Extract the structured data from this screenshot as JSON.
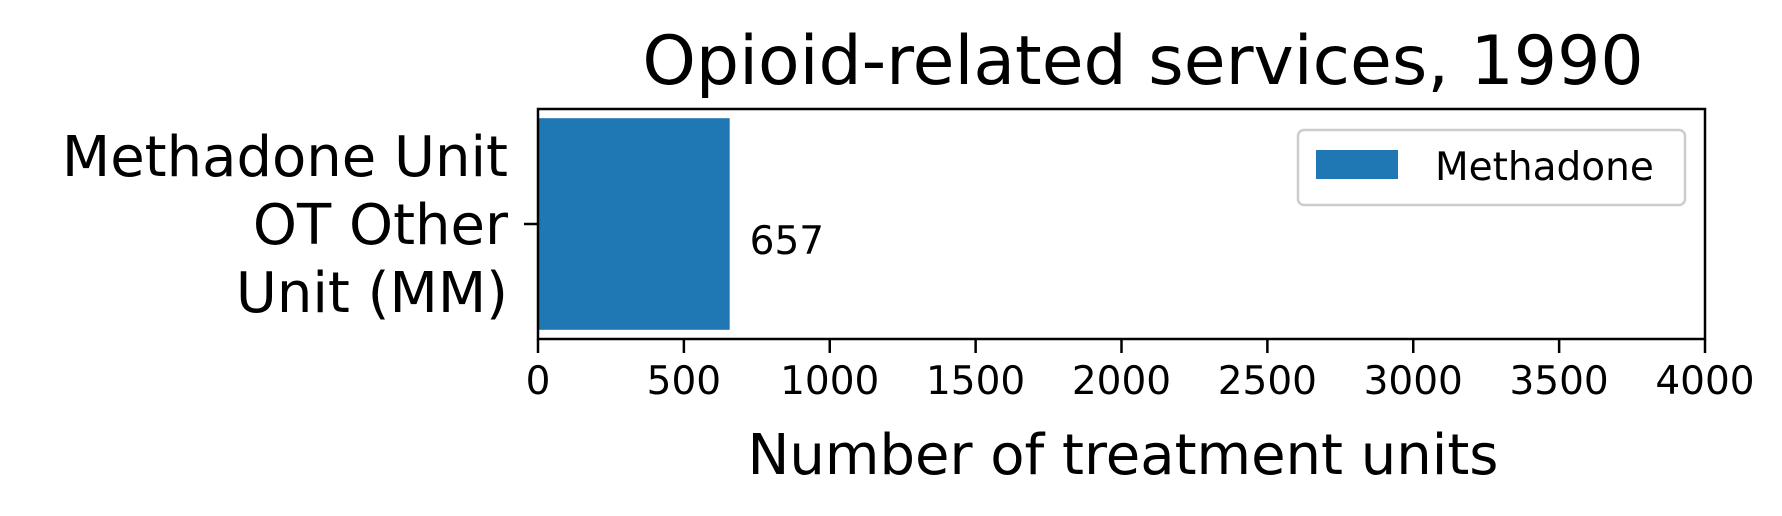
{
  "chart_data": {
    "type": "bar",
    "orientation": "horizontal",
    "title": "Opioid-related services, 1990",
    "xlabel": "Number of treatment units",
    "ylabel": "",
    "categories": [
      "Methadone Unit OT Other Unit (MM)"
    ],
    "category_lines": [
      [
        "Methadone Unit",
        "OT Other",
        "Unit (MM)"
      ]
    ],
    "series": [
      {
        "name": "Methadone",
        "values": [
          657
        ],
        "color": "#1f77b4"
      }
    ],
    "data_labels": [
      "657"
    ],
    "xlim": [
      0,
      4000
    ],
    "xticks": [
      0,
      500,
      1000,
      1500,
      2000,
      2500,
      3000,
      3500,
      4000
    ],
    "xtick_labels": [
      "0",
      "500",
      "1000",
      "1500",
      "2000",
      "2500",
      "3000",
      "3500",
      "4000"
    ],
    "grid": false,
    "legend_position": "top-right"
  }
}
